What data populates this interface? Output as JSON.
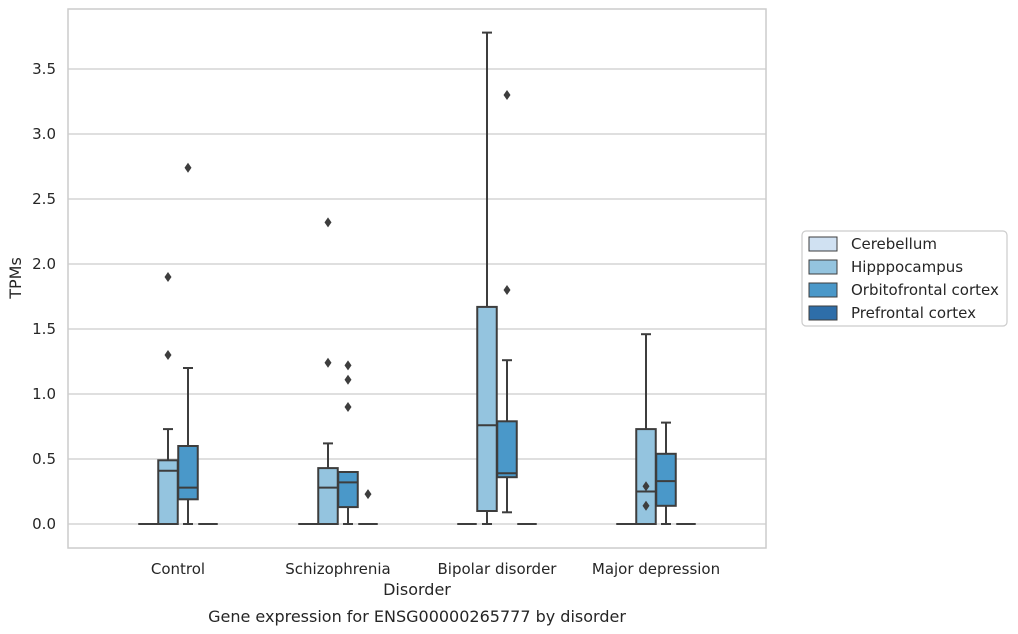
{
  "caption": "Gene expression for ENSG00000265777 by disorder",
  "colors": {
    "Cerebellum": "#d0e1f2",
    "Hipppocampus": "#94c4df",
    "Orbitofrontal cortex": "#4a98c9",
    "Prefrontal cortex": "#2e6ea9",
    "grid": "#cccccc",
    "frame": "#cccccc",
    "line": "#3d3d3d"
  },
  "chart_data": {
    "type": "box",
    "title": "",
    "xlabel": "Disorder",
    "ylabel": "TPMs",
    "ylim": [
      -0.18,
      3.9
    ],
    "yticks": [
      "0.0",
      "0.5",
      "1.0",
      "1.5",
      "2.0",
      "2.5",
      "3.0",
      "3.5"
    ],
    "grid": true,
    "legend_position": "right",
    "categories": [
      "Control",
      "Schizophrenia",
      "Bipolar disorder",
      "Major depression"
    ],
    "series": [
      {
        "name": "Cerebellum",
        "boxes": [
          {
            "whislo": 0,
            "q1": 0,
            "med": 0,
            "q3": 0,
            "whishi": 0,
            "fliers": []
          },
          {
            "whislo": 0,
            "q1": 0,
            "med": 0,
            "q3": 0,
            "whishi": 0,
            "fliers": []
          },
          {
            "whislo": 0,
            "q1": 0,
            "med": 0,
            "q3": 0,
            "whishi": 0,
            "fliers": []
          },
          {
            "whislo": 0,
            "q1": 0,
            "med": 0,
            "q3": 0,
            "whishi": 0,
            "fliers": []
          }
        ]
      },
      {
        "name": "Hipppocampus",
        "boxes": [
          {
            "whislo": 0,
            "q1": 0,
            "med": 0.41,
            "q3": 0.49,
            "whishi": 0.73,
            "fliers": [
              1.3,
              1.9
            ]
          },
          {
            "whislo": 0,
            "q1": 0,
            "med": 0.28,
            "q3": 0.43,
            "whishi": 0.62,
            "fliers": [
              1.24,
              2.32
            ]
          },
          {
            "whislo": 0,
            "q1": 0.1,
            "med": 0.76,
            "q3": 1.67,
            "whishi": 3.78,
            "fliers": []
          },
          {
            "whislo": 0,
            "q1": 0,
            "med": 0.25,
            "q3": 0.73,
            "whishi": 1.46,
            "fliers": [
              0.14,
              0.29
            ]
          }
        ]
      },
      {
        "name": "Orbitofrontal cortex",
        "boxes": [
          {
            "whislo": 0,
            "q1": 0.19,
            "med": 0.28,
            "q3": 0.6,
            "whishi": 1.2,
            "fliers": [
              2.74
            ]
          },
          {
            "whislo": 0,
            "q1": 0.13,
            "med": 0.32,
            "q3": 0.4,
            "whishi": 0.4,
            "fliers": [
              0.9,
              1.11,
              1.22
            ]
          },
          {
            "whislo": 0.09,
            "q1": 0.36,
            "med": 0.39,
            "q3": 0.79,
            "whishi": 1.26,
            "fliers": [
              1.8,
              3.3
            ]
          },
          {
            "whislo": 0,
            "q1": 0.14,
            "med": 0.33,
            "q3": 0.54,
            "whishi": 0.78,
            "fliers": []
          }
        ]
      },
      {
        "name": "Prefrontal cortex",
        "boxes": [
          {
            "whislo": 0,
            "q1": 0,
            "med": 0,
            "q3": 0,
            "whishi": 0,
            "fliers": []
          },
          {
            "whislo": 0,
            "q1": 0,
            "med": 0,
            "q3": 0,
            "whishi": 0,
            "fliers": [
              0.23
            ]
          },
          {
            "whislo": 0,
            "q1": 0,
            "med": 0,
            "q3": 0,
            "whishi": 0,
            "fliers": []
          },
          {
            "whislo": 0,
            "q1": 0,
            "med": 0,
            "q3": 0,
            "whishi": 0,
            "fliers": []
          }
        ]
      }
    ]
  }
}
